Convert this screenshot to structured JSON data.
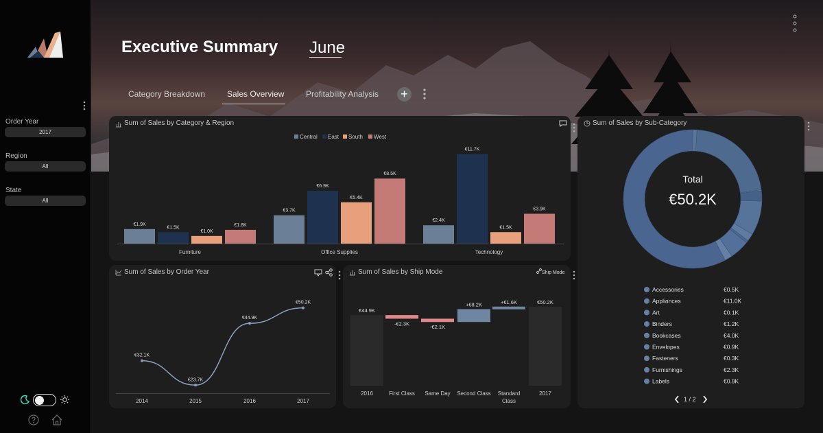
{
  "app": {
    "title": "Executive Summary",
    "month": "June"
  },
  "tabs": [
    {
      "label": "Category Breakdown",
      "active": false
    },
    {
      "label": "Sales Overview",
      "active": true
    },
    {
      "label": "Profitability Analysis",
      "active": false
    }
  ],
  "add_tab_label": "+",
  "filters": [
    {
      "label": "Order Year",
      "value": "2017"
    },
    {
      "label": "Region",
      "value": "All"
    },
    {
      "label": "State",
      "value": "All"
    }
  ],
  "colors": {
    "central": "#6b7f96",
    "east": "#1e3250",
    "south": "#e8a07c",
    "west": "#c47b78",
    "line": "#8aa0c0",
    "donut": "#4e6a8e",
    "neg": "#e0898a",
    "pos": "#6f86a3",
    "total": "#2a2a2a"
  },
  "cards": {
    "category_region": {
      "title": "Sum of Sales by Category & Region"
    },
    "order_year": {
      "title": "Sum of Sales by Order Year"
    },
    "ship_mode": {
      "title": "Sum of Sales by Ship Mode",
      "header_button": "Ship Mode"
    },
    "sub_category": {
      "title": "Sum of Sales by Sub-Category",
      "total_label": "Total",
      "total_value": "€50.2K",
      "pager": "1 / 2"
    }
  },
  "chart_data": [
    {
      "type": "bar",
      "title": "Sum of Sales by Category & Region",
      "categories": [
        "Furniture",
        "Office Supplies",
        "Technology"
      ],
      "series": [
        {
          "name": "Central",
          "values": [
            1.9,
            3.7,
            2.4
          ],
          "labels": [
            "€1.9K",
            "€3.7K",
            "€2.4K"
          ]
        },
        {
          "name": "East",
          "values": [
            1.5,
            6.9,
            11.7
          ],
          "labels": [
            "€1.5K",
            "€6.9K",
            "€11.7K"
          ]
        },
        {
          "name": "South",
          "values": [
            1.0,
            5.4,
            1.5
          ],
          "labels": [
            "€1.0K",
            "€5.4K",
            "€1.5K"
          ]
        },
        {
          "name": "West",
          "values": [
            1.8,
            8.5,
            3.9
          ],
          "labels": [
            "€1.8K",
            "€8.5K",
            "€3.9K"
          ]
        }
      ],
      "legend": "top-center"
    },
    {
      "type": "line",
      "title": "Sum of Sales by Order Year",
      "x": [
        "2014",
        "2015",
        "2016",
        "2017"
      ],
      "values": [
        32.1,
        23.7,
        44.9,
        50.2
      ],
      "labels": [
        "€32.1K",
        "€23.7K",
        "€44.9K",
        "€50.2K"
      ]
    },
    {
      "type": "bar",
      "subtype": "waterfall",
      "title": "Sum of Sales by Ship Mode",
      "categories": [
        "2016",
        "First Class",
        "Same Day",
        "Second Class",
        "Standard Class",
        "2017"
      ],
      "values": [
        44.9,
        -2.3,
        -2.1,
        8.2,
        1.6,
        50.2
      ],
      "kinds": [
        "total",
        "delta",
        "delta",
        "delta",
        "delta",
        "total"
      ],
      "labels": [
        "€44.9K",
        "-€2.3K",
        "-€2.1K",
        "+€8.2K",
        "+€1.6K",
        "€50.2K"
      ]
    },
    {
      "type": "pie",
      "subtype": "donut",
      "title": "Sum of Sales by Sub-Category",
      "center_label": "Total",
      "center_value": "€50.2K",
      "legend": "bottom",
      "slices": [
        {
          "name": "Accessories",
          "value": 0.5,
          "label": "€0.5K"
        },
        {
          "name": "Appliances",
          "value": 11.0,
          "label": "€11.0K"
        },
        {
          "name": "Art",
          "value": 0.1,
          "label": "€0.1K"
        },
        {
          "name": "Binders",
          "value": 1.2,
          "label": "€1.2K"
        },
        {
          "name": "Bookcases",
          "value": 4.0,
          "label": "€4.0K"
        },
        {
          "name": "Envelopes",
          "value": 0.9,
          "label": "€0.9K"
        },
        {
          "name": "Fasteners",
          "value": 0.3,
          "label": "€0.3K"
        },
        {
          "name": "Furnishings",
          "value": 2.3,
          "label": "€2.3K"
        },
        {
          "name": "Labels",
          "value": 0.9,
          "label": "€0.9K"
        }
      ]
    }
  ]
}
